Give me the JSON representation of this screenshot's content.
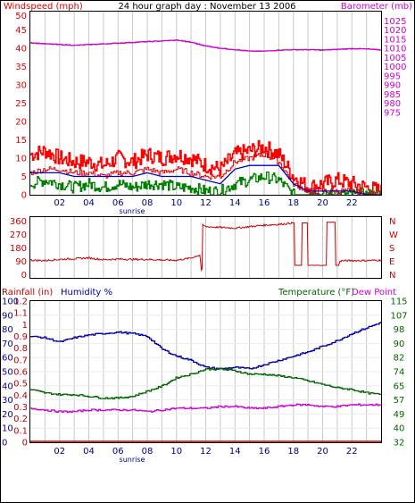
{
  "title": "24 hour graph day : November 13 2006",
  "colors": {
    "wind": "#e00000",
    "gust": "#ff0000",
    "avgwind": "#0000c0",
    "low": "#008000",
    "barometer": "#d000d0",
    "direction": "#cc0000",
    "rain": "#c00000",
    "humidity": "#0000a0",
    "temperature": "#006400",
    "dewpoint": "#d000d0",
    "grid": "#c8c8c8",
    "frame": "#000000"
  },
  "x_ticks": [
    "02",
    "04",
    "06",
    "08",
    "10",
    "12",
    "14",
    "16",
    "18",
    "20",
    "22"
  ],
  "sunrise_label": "sunrise",
  "top_panel": {
    "left_label": "Windspeed (mph)",
    "right_label": "Barometer (mb)",
    "left_ticks": [
      "50",
      "45",
      "40",
      "35",
      "30",
      "25",
      "20",
      "15",
      "10",
      "5",
      "0"
    ],
    "right_ticks": [
      "1025",
      "1020",
      "1015",
      "1010",
      "1005",
      "1000",
      "995",
      "990",
      "985",
      "980",
      "975"
    ]
  },
  "mid_panel": {
    "left_ticks": [
      "360",
      "270",
      "180",
      "90",
      "0"
    ],
    "right_ticks": [
      "N",
      "W",
      "S",
      "E",
      "N"
    ]
  },
  "bottom_panel": {
    "rain_label": "Rainfall (in)",
    "humidity_label": "Humidity %",
    "temp_label": "Temperature (°F)",
    "dew_label": "Dew Point",
    "rain_ticks": [
      "1.2",
      "1.1",
      "1",
      "0.9",
      "0.8",
      "0.7",
      "0.6",
      "0.5",
      "0.4",
      "0.3",
      "0.2",
      "0.1",
      "0"
    ],
    "humidity_ticks": [
      "100",
      "90",
      "80",
      "70",
      "60",
      "50",
      "40",
      "30",
      "20",
      "10",
      "0"
    ],
    "temp_ticks": [
      "115",
      "107",
      "98",
      "90",
      "82",
      "74",
      "65",
      "57",
      "49",
      "40",
      "32"
    ]
  },
  "chart_data": [
    {
      "type": "line",
      "name": "wind and barometer",
      "x_unit": "hour",
      "xlim": [
        0,
        24
      ],
      "ylim": [
        0,
        50
      ],
      "ylim_right": [
        975,
        1025
      ],
      "series": [
        {
          "name": "Windspeed (mph)",
          "axis": "left",
          "x": [
            0,
            1,
            2,
            3,
            4,
            5,
            6,
            7,
            8,
            9,
            10,
            11,
            12,
            13,
            14,
            15,
            16,
            17,
            18,
            19,
            20,
            21,
            22,
            23,
            24
          ],
          "values": [
            6,
            7,
            7,
            6,
            6,
            5,
            6,
            6,
            7,
            6,
            7,
            6,
            5,
            5,
            9,
            10,
            11,
            9,
            3,
            1,
            1,
            1,
            1,
            0,
            0
          ]
        },
        {
          "name": "gust",
          "axis": "left",
          "x": [
            0,
            1,
            2,
            3,
            4,
            5,
            6,
            7,
            8,
            9,
            10,
            11,
            12,
            13,
            14,
            15,
            16,
            17,
            18,
            19,
            20,
            21,
            22,
            23,
            24
          ],
          "values": [
            11,
            12,
            10,
            9,
            9,
            8,
            10,
            9,
            11,
            10,
            11,
            10,
            8,
            7,
            11,
            12,
            13,
            11,
            5,
            2,
            3,
            4,
            3,
            2,
            1
          ]
        },
        {
          "name": "average",
          "axis": "left",
          "x": [
            0,
            1,
            2,
            3,
            4,
            5,
            6,
            7,
            8,
            9,
            10,
            11,
            12,
            13,
            14,
            15,
            16,
            17,
            18,
            19,
            20,
            21,
            22,
            23,
            24
          ],
          "values": [
            6,
            6,
            6,
            5,
            5,
            5,
            5,
            5,
            6,
            5,
            5,
            5,
            4,
            3,
            7,
            8,
            8,
            8,
            3,
            1,
            1,
            1,
            1,
            0,
            0
          ]
        },
        {
          "name": "low",
          "axis": "left",
          "x": [
            0,
            1,
            2,
            3,
            4,
            5,
            6,
            7,
            8,
            9,
            10,
            11,
            12,
            13,
            14,
            15,
            16,
            17,
            18,
            19,
            20,
            21,
            22,
            23,
            24
          ],
          "values": [
            3,
            4,
            3,
            2,
            3,
            2,
            3,
            2,
            3,
            3,
            2,
            2,
            1,
            1,
            3,
            4,
            5,
            4,
            0,
            0,
            0,
            0,
            0,
            0,
            0
          ]
        },
        {
          "name": "Barometer (mb)",
          "axis": "right",
          "x": [
            0,
            1,
            2,
            3,
            4,
            5,
            6,
            7,
            8,
            9,
            10,
            11,
            12,
            13,
            14,
            15,
            16,
            17,
            18,
            19,
            20,
            21,
            22,
            23,
            24
          ],
          "values": [
            1016.5,
            1016.2,
            1016.0,
            1015.8,
            1016.0,
            1016.2,
            1016.4,
            1016.6,
            1016.8,
            1017.0,
            1017.2,
            1016.6,
            1015.6,
            1015.0,
            1014.6,
            1014.2,
            1014.2,
            1014.5,
            1014.6,
            1014.6,
            1014.5,
            1014.7,
            1014.9,
            1014.8,
            1014.5
          ]
        }
      ]
    },
    {
      "type": "line",
      "name": "wind direction",
      "x_unit": "hour",
      "xlim": [
        0,
        24
      ],
      "ylim": [
        0,
        360
      ],
      "series": [
        {
          "name": "direction",
          "x": [
            0,
            1,
            2,
            3,
            4,
            5,
            6,
            7,
            8,
            9,
            10,
            11,
            11.6,
            11.7,
            11.8,
            12,
            13,
            14,
            15,
            16,
            17,
            18,
            18.1,
            18.5,
            18.6,
            18.9,
            19,
            20,
            20.2,
            20.3,
            20.8,
            20.9,
            21.1,
            21.2,
            22,
            23,
            24
          ],
          "values": [
            95,
            92,
            100,
            105,
            110,
            98,
            102,
            100,
            100,
            96,
            94,
            110,
            130,
            30,
            330,
            320,
            315,
            310,
            320,
            330,
            335,
            345,
            60,
            60,
            345,
            345,
            60,
            60,
            60,
            350,
            350,
            60,
            60,
            90,
            92,
            92,
            95
          ]
        }
      ]
    },
    {
      "type": "line",
      "name": "rain humidity temperature",
      "x_unit": "hour",
      "xlim": [
        0,
        24
      ],
      "ylim_rain": [
        0,
        1.2
      ],
      "ylim_humidity": [
        0,
        100
      ],
      "ylim_temp": [
        32,
        115
      ],
      "series": [
        {
          "name": "Rainfall (in)",
          "axis": "rain",
          "x": [
            0,
            24
          ],
          "values": [
            0,
            0
          ]
        },
        {
          "name": "Humidity %",
          "axis": "humidity",
          "x": [
            0,
            1,
            2,
            3,
            4,
            5,
            6,
            7,
            8,
            9,
            10,
            11,
            12,
            13,
            14,
            15,
            16,
            17,
            18,
            19,
            20,
            21,
            22,
            23,
            24
          ],
          "values": [
            75,
            74,
            71,
            74,
            76,
            77,
            78,
            77,
            75,
            66,
            61,
            58,
            53,
            52,
            53,
            52,
            55,
            58,
            61,
            64,
            68,
            72,
            77,
            81,
            85
          ]
        },
        {
          "name": "Temperature (°F)",
          "axis": "temp",
          "x": [
            0,
            1,
            2,
            3,
            4,
            5,
            6,
            7,
            8,
            9,
            10,
            11,
            12,
            13,
            14,
            15,
            16,
            17,
            18,
            19,
            20,
            21,
            22,
            23,
            24
          ],
          "values": [
            63,
            61,
            60,
            60,
            59,
            58,
            58,
            59,
            62,
            65,
            70,
            72,
            75,
            75,
            74,
            72,
            72,
            71,
            70,
            68,
            66,
            64,
            63,
            61,
            60
          ]
        },
        {
          "name": "Dew Point",
          "axis": "temp",
          "x": [
            0,
            1,
            2,
            3,
            4,
            5,
            6,
            7,
            8,
            9,
            10,
            11,
            12,
            13,
            14,
            15,
            16,
            17,
            18,
            19,
            20,
            21,
            22,
            23,
            24
          ],
          "values": [
            52,
            51,
            50,
            50,
            51,
            51,
            51,
            51,
            50,
            51,
            52,
            52,
            52,
            53,
            53,
            52,
            52,
            53,
            54,
            54,
            53,
            53,
            54,
            54,
            54
          ]
        }
      ]
    }
  ]
}
